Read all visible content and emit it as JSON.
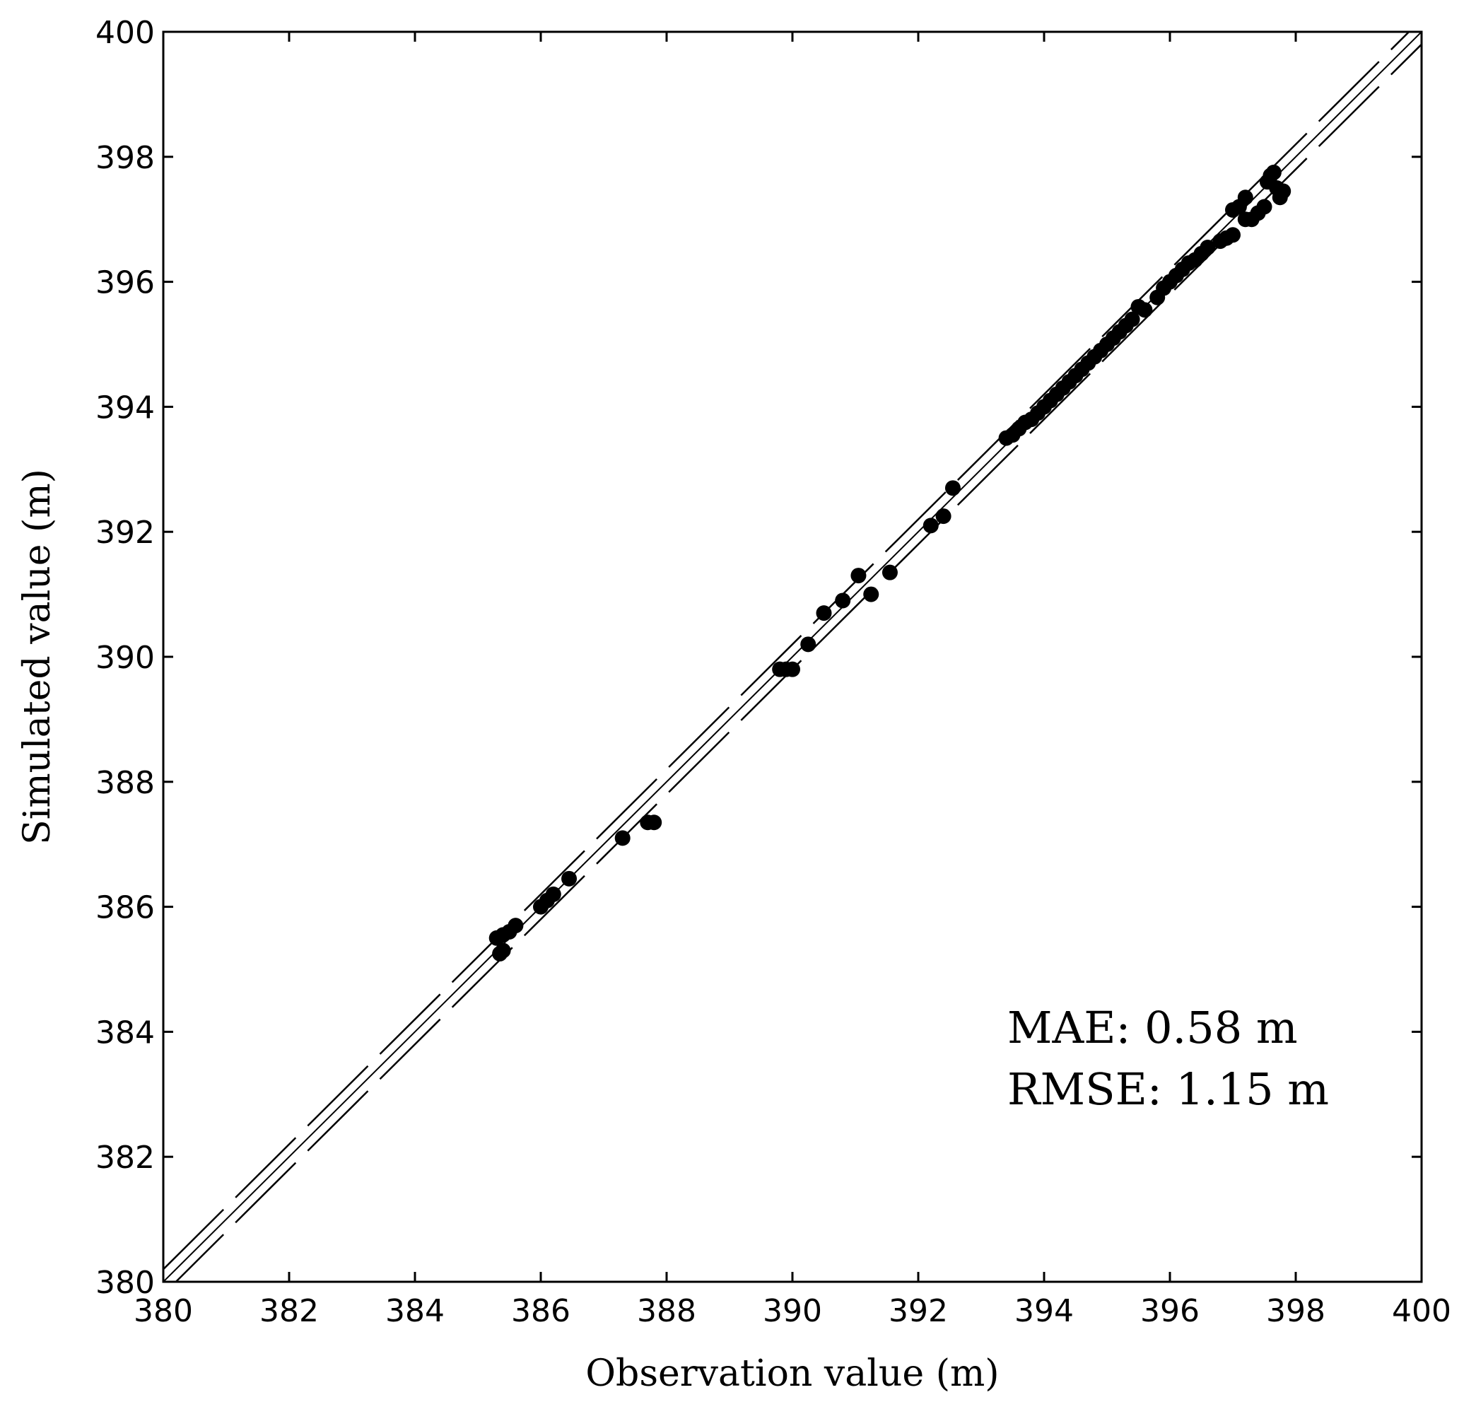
{
  "chart_data": {
    "type": "scatter",
    "xlabel": "Observation value (m)",
    "ylabel": "Simulated value (m)",
    "xlim": [
      380,
      400
    ],
    "ylim": [
      380,
      400
    ],
    "x_ticks": [
      "380",
      "382",
      "384",
      "386",
      "388",
      "390",
      "392",
      "394",
      "396",
      "398",
      "400"
    ],
    "y_ticks": [
      "380",
      "382",
      "384",
      "386",
      "388",
      "390",
      "392",
      "394",
      "396",
      "398",
      "400"
    ],
    "grid": false,
    "legend": "none",
    "annotations": [
      "MAE: 0.58 m",
      "RMSE: 1.15 m"
    ],
    "reference_lines": [
      {
        "type": "1:1 line",
        "style": "solid",
        "offset": 0
      },
      {
        "type": "offset band",
        "style": "dashed",
        "offset": 0.2
      },
      {
        "type": "offset band",
        "style": "dashed",
        "offset": -0.2
      }
    ],
    "points": [
      {
        "x": 385.3,
        "y": 385.5
      },
      {
        "x": 385.4,
        "y": 385.55
      },
      {
        "x": 385.5,
        "y": 385.6
      },
      {
        "x": 385.6,
        "y": 385.7
      },
      {
        "x": 385.35,
        "y": 385.25
      },
      {
        "x": 385.4,
        "y": 385.3
      },
      {
        "x": 386.0,
        "y": 386.0
      },
      {
        "x": 386.1,
        "y": 386.1
      },
      {
        "x": 386.2,
        "y": 386.2
      },
      {
        "x": 386.45,
        "y": 386.45
      },
      {
        "x": 387.3,
        "y": 387.1
      },
      {
        "x": 387.7,
        "y": 387.35
      },
      {
        "x": 387.8,
        "y": 387.35
      },
      {
        "x": 389.8,
        "y": 389.8
      },
      {
        "x": 389.9,
        "y": 389.8
      },
      {
        "x": 390.0,
        "y": 389.8
      },
      {
        "x": 390.25,
        "y": 390.2
      },
      {
        "x": 390.5,
        "y": 390.7
      },
      {
        "x": 390.8,
        "y": 390.9
      },
      {
        "x": 391.05,
        "y": 391.3
      },
      {
        "x": 391.25,
        "y": 391.0
      },
      {
        "x": 391.55,
        "y": 391.35
      },
      {
        "x": 392.2,
        "y": 392.1
      },
      {
        "x": 392.4,
        "y": 392.25
      },
      {
        "x": 392.55,
        "y": 392.7
      },
      {
        "x": 393.4,
        "y": 393.5
      },
      {
        "x": 393.5,
        "y": 393.55
      },
      {
        "x": 393.6,
        "y": 393.65
      },
      {
        "x": 393.7,
        "y": 393.75
      },
      {
        "x": 393.8,
        "y": 393.8
      },
      {
        "x": 393.9,
        "y": 393.9
      },
      {
        "x": 394.0,
        "y": 394.0
      },
      {
        "x": 394.1,
        "y": 394.1
      },
      {
        "x": 394.2,
        "y": 394.2
      },
      {
        "x": 394.3,
        "y": 394.3
      },
      {
        "x": 394.4,
        "y": 394.4
      },
      {
        "x": 394.5,
        "y": 394.5
      },
      {
        "x": 394.6,
        "y": 394.6
      },
      {
        "x": 394.7,
        "y": 394.7
      },
      {
        "x": 394.8,
        "y": 394.8
      },
      {
        "x": 394.9,
        "y": 394.9
      },
      {
        "x": 395.0,
        "y": 395.0
      },
      {
        "x": 395.1,
        "y": 395.1
      },
      {
        "x": 395.2,
        "y": 395.2
      },
      {
        "x": 395.3,
        "y": 395.3
      },
      {
        "x": 395.4,
        "y": 395.4
      },
      {
        "x": 395.5,
        "y": 395.6
      },
      {
        "x": 395.6,
        "y": 395.55
      },
      {
        "x": 395.8,
        "y": 395.75
      },
      {
        "x": 395.9,
        "y": 395.9
      },
      {
        "x": 396.0,
        "y": 396.0
      },
      {
        "x": 396.1,
        "y": 396.1
      },
      {
        "x": 396.2,
        "y": 396.2
      },
      {
        "x": 396.3,
        "y": 396.3
      },
      {
        "x": 396.4,
        "y": 396.35
      },
      {
        "x": 396.5,
        "y": 396.45
      },
      {
        "x": 396.6,
        "y": 396.55
      },
      {
        "x": 396.8,
        "y": 396.65
      },
      {
        "x": 396.9,
        "y": 396.7
      },
      {
        "x": 397.0,
        "y": 396.75
      },
      {
        "x": 397.0,
        "y": 397.15
      },
      {
        "x": 397.1,
        "y": 397.2
      },
      {
        "x": 397.2,
        "y": 397.35
      },
      {
        "x": 397.2,
        "y": 397.0
      },
      {
        "x": 397.3,
        "y": 397.0
      },
      {
        "x": 397.4,
        "y": 397.1
      },
      {
        "x": 397.5,
        "y": 397.2
      },
      {
        "x": 397.55,
        "y": 397.6
      },
      {
        "x": 397.6,
        "y": 397.7
      },
      {
        "x": 397.65,
        "y": 397.75
      },
      {
        "x": 397.7,
        "y": 397.5
      },
      {
        "x": 397.75,
        "y": 397.35
      },
      {
        "x": 397.8,
        "y": 397.45
      }
    ]
  }
}
